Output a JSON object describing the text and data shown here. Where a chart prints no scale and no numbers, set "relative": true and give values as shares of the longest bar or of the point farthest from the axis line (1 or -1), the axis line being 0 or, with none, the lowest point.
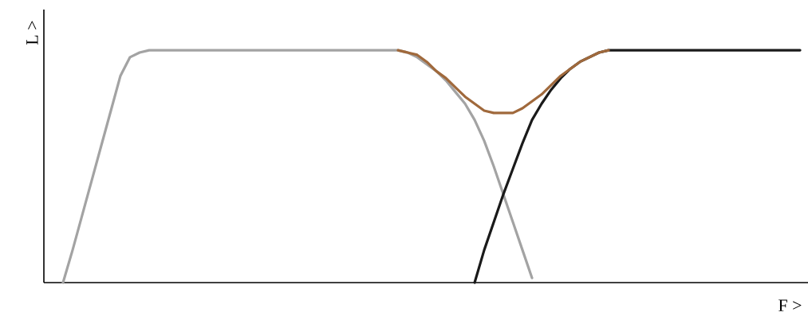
{
  "chart_data": {
    "type": "line",
    "relative": true,
    "xlabel": "F >",
    "ylabel": "L >",
    "categories": [
      null,
      null,
      null,
      null,
      null,
      null,
      null,
      null,
      null,
      null,
      null,
      null,
      null,
      null,
      null,
      null,
      null,
      null,
      null,
      null,
      null,
      null,
      null,
      null,
      null,
      null,
      null,
      null,
      null,
      null,
      null,
      null,
      null,
      null,
      null,
      null,
      null,
      null,
      null,
      null,
      null,
      null,
      null,
      null,
      null,
      null,
      null,
      null,
      null,
      null,
      null,
      null,
      null,
      null,
      null,
      null,
      null,
      null,
      null,
      null,
      null,
      null,
      null,
      null,
      null,
      null,
      null,
      null,
      null,
      null,
      null,
      null,
      null,
      null,
      null,
      null,
      null,
      null,
      null,
      null
    ],
    "series": [
      {
        "color": "#a3a3a3",
        "values": [
          null,
          null,
          0,
          0.14,
          0.29,
          0.44,
          0.59,
          0.74,
          0.89,
          0.97,
          0.99,
          1,
          1,
          1,
          1,
          1,
          1,
          1,
          1,
          1,
          1,
          1,
          1,
          1,
          1,
          1,
          1,
          1,
          1,
          1,
          1,
          1,
          1,
          1,
          1,
          1,
          1,
          1,
          0.99,
          0.97,
          0.94,
          0.91,
          0.87,
          0.82,
          0.77,
          0.7,
          0.61,
          0.5,
          0.38,
          0.26,
          0.14,
          0.02,
          null,
          null,
          null,
          null,
          null,
          null,
          null,
          null,
          null,
          null,
          null,
          null,
          null,
          null,
          null,
          null,
          null,
          null,
          null,
          null,
          null,
          null,
          null,
          null,
          null,
          null,
          null,
          null
        ]
      },
      {
        "color": "#1a1a1a",
        "values": [
          null,
          null,
          null,
          null,
          null,
          null,
          null,
          null,
          null,
          null,
          null,
          null,
          null,
          null,
          null,
          null,
          null,
          null,
          null,
          null,
          null,
          null,
          null,
          null,
          null,
          null,
          null,
          null,
          null,
          null,
          null,
          null,
          null,
          null,
          null,
          null,
          null,
          null,
          null,
          null,
          null,
          null,
          null,
          null,
          null,
          0,
          0.14,
          0.26,
          0.38,
          0.49,
          0.6,
          0.7,
          0.77,
          0.83,
          0.88,
          0.92,
          0.95,
          0.97,
          0.99,
          1,
          1,
          1,
          1,
          1,
          1,
          1,
          1,
          1,
          1,
          1,
          1,
          1,
          1,
          1,
          1,
          1,
          1,
          1,
          1,
          1
        ]
      },
      {
        "color": "#a0693c",
        "values": [
          null,
          null,
          null,
          null,
          null,
          null,
          null,
          null,
          null,
          null,
          null,
          null,
          null,
          null,
          null,
          null,
          null,
          null,
          null,
          null,
          null,
          null,
          null,
          null,
          null,
          null,
          null,
          null,
          null,
          null,
          null,
          null,
          null,
          null,
          null,
          null,
          null,
          1,
          0.99,
          0.98,
          0.95,
          0.91,
          0.88,
          0.84,
          0.8,
          0.77,
          0.74,
          0.73,
          0.73,
          0.73,
          0.75,
          0.78,
          0.81,
          0.85,
          0.89,
          0.92,
          0.95,
          0.97,
          0.99,
          1,
          null,
          null,
          null,
          null,
          null,
          null,
          null,
          null,
          null,
          null,
          null,
          null,
          null,
          null,
          null,
          null,
          null,
          null,
          null,
          null
        ]
      }
    ]
  }
}
